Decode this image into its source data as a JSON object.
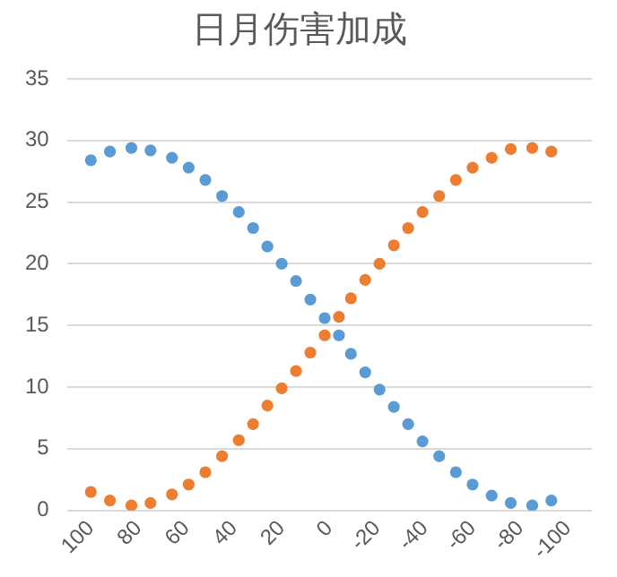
{
  "chart_data": {
    "type": "scatter",
    "title": "日月伤害加成",
    "x": [
      100,
      92,
      83,
      75,
      66,
      59,
      52,
      45,
      38,
      32,
      26,
      20,
      14,
      8,
      2,
      -4,
      -9,
      -15,
      -21,
      -27,
      -33,
      -39,
      -46,
      -53,
      -60,
      -68,
      -76,
      -85,
      -93
    ],
    "series": [
      {
        "color": "#5b9bd5",
        "values": [
          28.4,
          29.1,
          29.4,
          29.2,
          28.6,
          27.8,
          26.8,
          25.5,
          24.2,
          22.9,
          21.4,
          20.0,
          18.6,
          17.1,
          15.6,
          14.2,
          12.7,
          11.2,
          9.8,
          8.4,
          7.0,
          5.6,
          4.4,
          3.1,
          2.1,
          1.2,
          0.6,
          0.4,
          0.8
        ]
      },
      {
        "color": "#ed7d31",
        "values": [
          1.5,
          0.8,
          0.4,
          0.6,
          1.3,
          2.1,
          3.1,
          4.4,
          5.7,
          7.0,
          8.5,
          9.9,
          11.3,
          12.8,
          14.2,
          15.7,
          17.2,
          18.7,
          20.0,
          21.5,
          22.9,
          24.2,
          25.5,
          26.8,
          27.8,
          28.6,
          29.3,
          29.4,
          29.1
        ]
      }
    ],
    "xlim": [
      110,
      -110
    ],
    "xticks": [
      100,
      80,
      60,
      40,
      20,
      0,
      -20,
      -40,
      -60,
      -80,
      -100
    ],
    "ylim": [
      0,
      35
    ],
    "yticks": [
      0,
      5,
      10,
      15,
      20,
      25,
      30,
      35
    ],
    "grid": "y",
    "marker": "circle",
    "legend": false
  }
}
